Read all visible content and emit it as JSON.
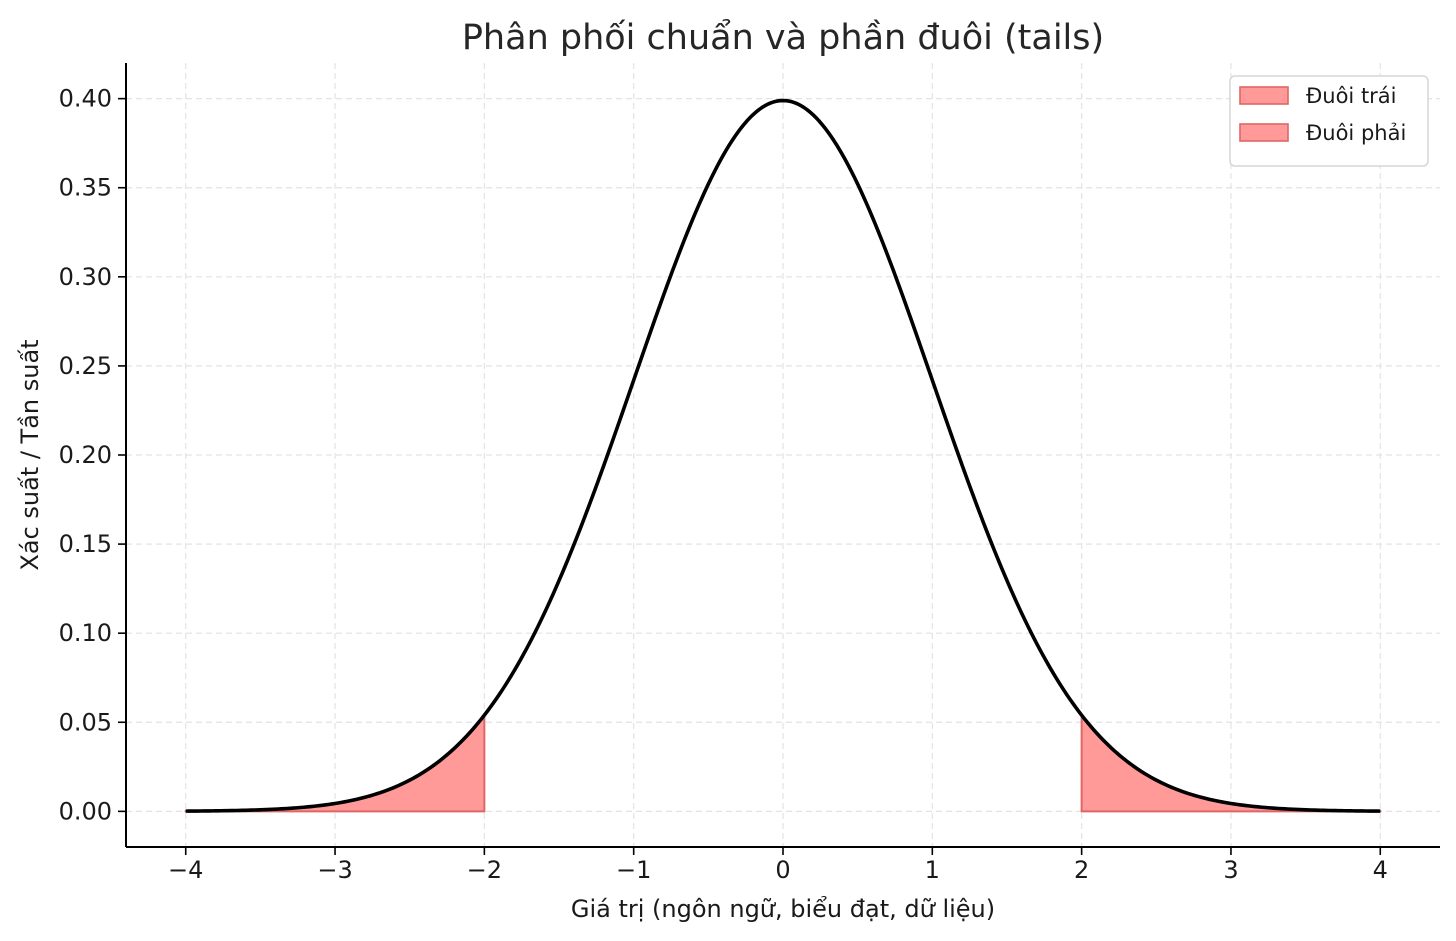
{
  "chart_data": {
    "type": "area",
    "title": "Phân phối chuẩn và phần đuôi (tails)",
    "xlabel": "Giá trị (ngôn ngữ, biểu đạt, dữ liệu)",
    "ylabel": "Xác suất / Tần suất",
    "xlim": [
      -4.4,
      4.4
    ],
    "ylim": [
      -0.02,
      0.42
    ],
    "x_ticks": [
      -4,
      -3,
      -2,
      -1,
      0,
      1,
      2,
      3,
      4
    ],
    "x_tick_labels": [
      "−4",
      "−3",
      "−2",
      "−1",
      "0",
      "1",
      "2",
      "3",
      "4"
    ],
    "y_ticks": [
      0.0,
      0.05,
      0.1,
      0.15,
      0.2,
      0.25,
      0.3,
      0.35,
      0.4
    ],
    "y_tick_labels": [
      "0.00",
      "0.05",
      "0.10",
      "0.15",
      "0.20",
      "0.25",
      "0.30",
      "0.35",
      "0.40"
    ],
    "grid": true,
    "legend_position": "top-right",
    "curve": {
      "distribution": "normal",
      "mean": 0,
      "std": 1,
      "x_range": [
        -4,
        4
      ],
      "color": "#000000"
    },
    "series": [
      {
        "name": "Đuôi trái",
        "x_range": [
          -4,
          -2
        ],
        "color": "#ff9a98",
        "edge_color": "#e06666"
      },
      {
        "name": "Đuôi phải",
        "x_range": [
          2,
          4
        ],
        "color": "#ff9a98",
        "edge_color": "#e06666"
      }
    ]
  }
}
